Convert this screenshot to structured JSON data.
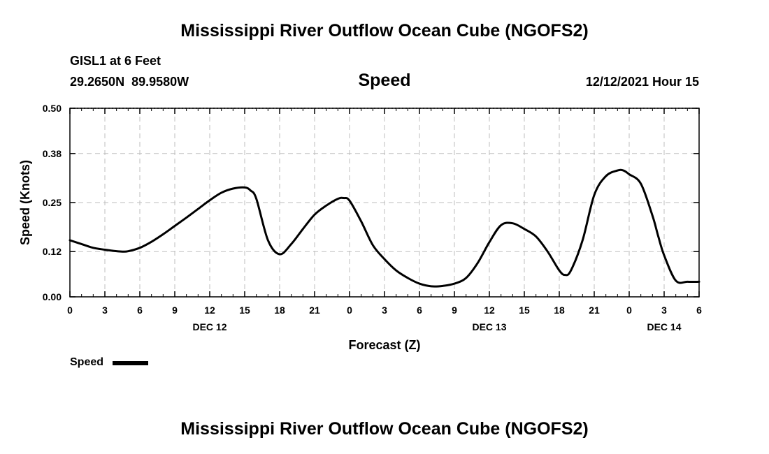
{
  "header": {
    "title": "Mississippi River Outflow Ocean Cube (NGOFS2)",
    "station": "GISL1 at 6 Feet",
    "coords": "29.2650N  89.9580W",
    "variable": "Speed",
    "datetime": "12/12/2021 Hour 15"
  },
  "footer": {
    "title": "Mississippi River Outflow Ocean Cube (NGOFS2)"
  },
  "legend": {
    "label": "Speed"
  },
  "chart_data": {
    "type": "line",
    "title": "Speed",
    "xlabel": "Forecast (Z)",
    "ylabel": "Speed (Knots)",
    "xlim": [
      0,
      54
    ],
    "ylim": [
      0,
      0.5
    ],
    "grid": true,
    "legend_position": "bottom-left",
    "x_ticks": [
      0,
      3,
      6,
      9,
      12,
      15,
      18,
      21,
      24,
      27,
      30,
      33,
      36,
      39,
      42,
      45,
      48,
      51,
      54
    ],
    "x_tick_labels": [
      "0",
      "3",
      "6",
      "9",
      "12",
      "15",
      "18",
      "21",
      "0",
      "3",
      "6",
      "9",
      "12",
      "15",
      "18",
      "21",
      "0",
      "3",
      "6"
    ],
    "date_labels": [
      {
        "x": 12,
        "text": "DEC 12"
      },
      {
        "x": 36,
        "text": "DEC 13"
      },
      {
        "x": 51,
        "text": "DEC 14"
      }
    ],
    "y_ticks": [
      0.0,
      0.12,
      0.25,
      0.38,
      0.5
    ],
    "y_tick_labels": [
      "0.00",
      "0.12",
      "0.25",
      "0.38",
      "0.50"
    ],
    "series": [
      {
        "name": "Speed",
        "color": "#000000",
        "x": [
          0,
          1,
          2,
          3,
          4,
          4.5,
          5,
          6,
          7,
          8,
          9,
          10,
          11,
          12,
          13,
          14,
          15,
          15.5,
          16,
          17,
          18,
          19,
          20,
          21,
          22,
          23,
          23.5,
          24,
          25,
          26,
          27,
          28,
          29,
          30,
          31,
          32,
          33,
          34,
          35,
          36,
          37,
          38,
          39,
          40,
          41,
          42,
          42.5,
          43,
          44,
          45,
          46,
          47,
          47.5,
          48,
          49,
          50,
          50.5,
          51,
          52,
          53,
          54
        ],
        "values": [
          0.15,
          0.14,
          0.13,
          0.125,
          0.121,
          0.12,
          0.121,
          0.13,
          0.146,
          0.166,
          0.188,
          0.21,
          0.233,
          0.256,
          0.276,
          0.287,
          0.29,
          0.282,
          0.26,
          0.15,
          0.113,
          0.14,
          0.18,
          0.218,
          0.242,
          0.26,
          0.262,
          0.255,
          0.2,
          0.137,
          0.1,
          0.07,
          0.05,
          0.035,
          0.028,
          0.029,
          0.035,
          0.05,
          0.09,
          0.145,
          0.19,
          0.195,
          0.18,
          0.16,
          0.12,
          0.07,
          0.058,
          0.07,
          0.15,
          0.27,
          0.32,
          0.335,
          0.335,
          0.325,
          0.3,
          0.215,
          0.16,
          0.11,
          0.043,
          0.04,
          0.04
        ]
      }
    ]
  }
}
